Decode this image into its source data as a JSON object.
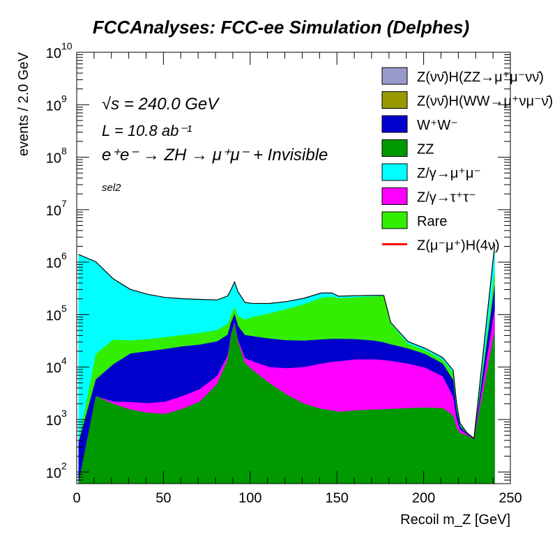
{
  "chart_data": {
    "type": "area",
    "title": "FCCAnalyses: FCC-ee Simulation (Delphes)",
    "xlabel": "Recoil m_Z [GeV]",
    "ylabel": "events / 2.0 GeV",
    "xlim": [
      0,
      250
    ],
    "ylim": [
      60,
      10000000000
    ],
    "y_scale": "log",
    "x_ticks": [
      "0",
      "50",
      "100",
      "150",
      "200",
      "250"
    ],
    "y_ticks": [
      {
        "base": "10",
        "exp": "2"
      },
      {
        "base": "10",
        "exp": "3"
      },
      {
        "base": "10",
        "exp": "4"
      },
      {
        "base": "10",
        "exp": "5"
      },
      {
        "base": "10",
        "exp": "6"
      },
      {
        "base": "10",
        "exp": "7"
      },
      {
        "base": "10",
        "exp": "8"
      },
      {
        "base": "10",
        "exp": "9"
      },
      {
        "base": "10",
        "exp": "10"
      }
    ],
    "annotations": {
      "sqrt_s": "√s = 240.0 GeV",
      "lumi": "L = 10.8 ab⁻¹",
      "process": "e⁺e⁻ → ZH → μ⁺μ⁻ + Invisible",
      "selection": "sel2"
    },
    "legend_position": "top-right",
    "x": [
      1,
      11,
      21,
      31,
      41,
      51,
      61,
      71,
      81,
      87,
      89,
      91,
      93,
      97,
      101,
      111,
      121,
      131,
      141,
      147,
      151,
      161,
      171,
      177,
      181,
      191,
      201,
      211,
      217,
      219,
      221,
      225,
      229,
      241
    ],
    "stack": [
      {
        "name": "ZZ",
        "color": "#009900",
        "values": [
          60,
          2800,
          2000,
          1550,
          1350,
          1280,
          1600,
          2200,
          4800,
          14000,
          40000,
          70000,
          30000,
          12000,
          9000,
          5000,
          3000,
          2000,
          1600,
          1500,
          1400,
          1500,
          1550,
          1580,
          1600,
          1650,
          1700,
          1650,
          1200,
          700,
          550,
          500,
          420,
          50000
        ]
      },
      {
        "name": "Z/γ→τ⁺τ⁻",
        "color": "#ff00ff",
        "values": [
          0,
          0,
          200,
          600,
          700,
          900,
          1200,
          1600,
          2000,
          2500,
          3000,
          3500,
          3000,
          2800,
          4000,
          5000,
          6500,
          8000,
          10000,
          11000,
          11500,
          12500,
          12500,
          12000,
          11500,
          10000,
          8000,
          5000,
          1500,
          300,
          100,
          20,
          5,
          80000
        ]
      },
      {
        "name": "W⁺W⁻",
        "color": "#0000cc",
        "values": [
          300,
          3000,
          9000,
          16000,
          18000,
          20000,
          22000,
          23000,
          24000,
          25000,
          28000,
          30000,
          28000,
          26000,
          26000,
          25000,
          23000,
          22000,
          22000,
          22000,
          21500,
          20000,
          18000,
          16000,
          14000,
          11000,
          8000,
          5000,
          3000,
          500,
          100,
          20,
          5,
          250000
        ]
      },
      {
        "name": "Rare",
        "color": "#33ee00",
        "values": [
          0,
          12000,
          22000,
          14000,
          14000,
          15000,
          16000,
          18000,
          20000,
          25000,
          30000,
          35000,
          32000,
          40000,
          50000,
          70000,
          95000,
          125000,
          175000,
          185000,
          170000,
          180000,
          190000,
          195000,
          40000,
          5000,
          3000,
          2000,
          2000,
          300,
          50,
          5,
          1,
          300000
        ]
      },
      {
        "name": "Z/γ→μ⁺μ⁻",
        "color": "#00ffff",
        "values": [
          1400000,
          1000000,
          450000,
          270000,
          210000,
          175000,
          160000,
          150000,
          140000,
          160000,
          200000,
          280000,
          180000,
          90000,
          75000,
          58000,
          50000,
          48000,
          50000,
          40000,
          20000,
          15000,
          10000,
          8000,
          4000,
          3000,
          2000,
          1500,
          1000,
          200,
          50,
          10,
          2,
          1500000
        ]
      },
      {
        "name": "Z(νν̄)H(WW→μ⁺νμ⁻ν̄)",
        "color": "#999900",
        "values": [
          3,
          3,
          3,
          3,
          3,
          3,
          3,
          3,
          3,
          3,
          3,
          3,
          3,
          3,
          3,
          3,
          3,
          3,
          3,
          3,
          3,
          3,
          3,
          3,
          3,
          3,
          3,
          3,
          3,
          3,
          3,
          3,
          3,
          3
        ]
      },
      {
        "name": "Z(νν̄)H(ZZ→μ⁺μ⁻νν̄)",
        "color": "#9999cc",
        "values": [
          1,
          1,
          1,
          1,
          1,
          1,
          1,
          1,
          1,
          1,
          1,
          1,
          1,
          1,
          1,
          1,
          1,
          1,
          1,
          1,
          1,
          1,
          1,
          1,
          1,
          1,
          1,
          1,
          1,
          1,
          1,
          1,
          1,
          1
        ]
      }
    ],
    "signal": {
      "name": "Z(μ⁻μ⁺)H(4ν)",
      "color": "#ff0000"
    },
    "legend": [
      {
        "label": "Z(νν̄)H(ZZ→μ⁺μ⁻νν̄)",
        "color": "#9999cc",
        "kind": "box"
      },
      {
        "label": "Z(νν̄)H(WW→μ⁺νμ⁻ν̄)",
        "color": "#999900",
        "kind": "box"
      },
      {
        "label": "W⁺W⁻",
        "color": "#0000cc",
        "kind": "box"
      },
      {
        "label": "ZZ",
        "color": "#009900",
        "kind": "box"
      },
      {
        "label": "Z/γ→μ⁺μ⁻",
        "color": "#00ffff",
        "kind": "box"
      },
      {
        "label": "Z/γ→τ⁺τ⁻",
        "color": "#ff00ff",
        "kind": "box"
      },
      {
        "label": "Rare",
        "color": "#33ee00",
        "kind": "box"
      },
      {
        "label": "Z(μ⁻μ⁺)H(4ν)",
        "color": "#ff0000",
        "kind": "line"
      }
    ]
  }
}
